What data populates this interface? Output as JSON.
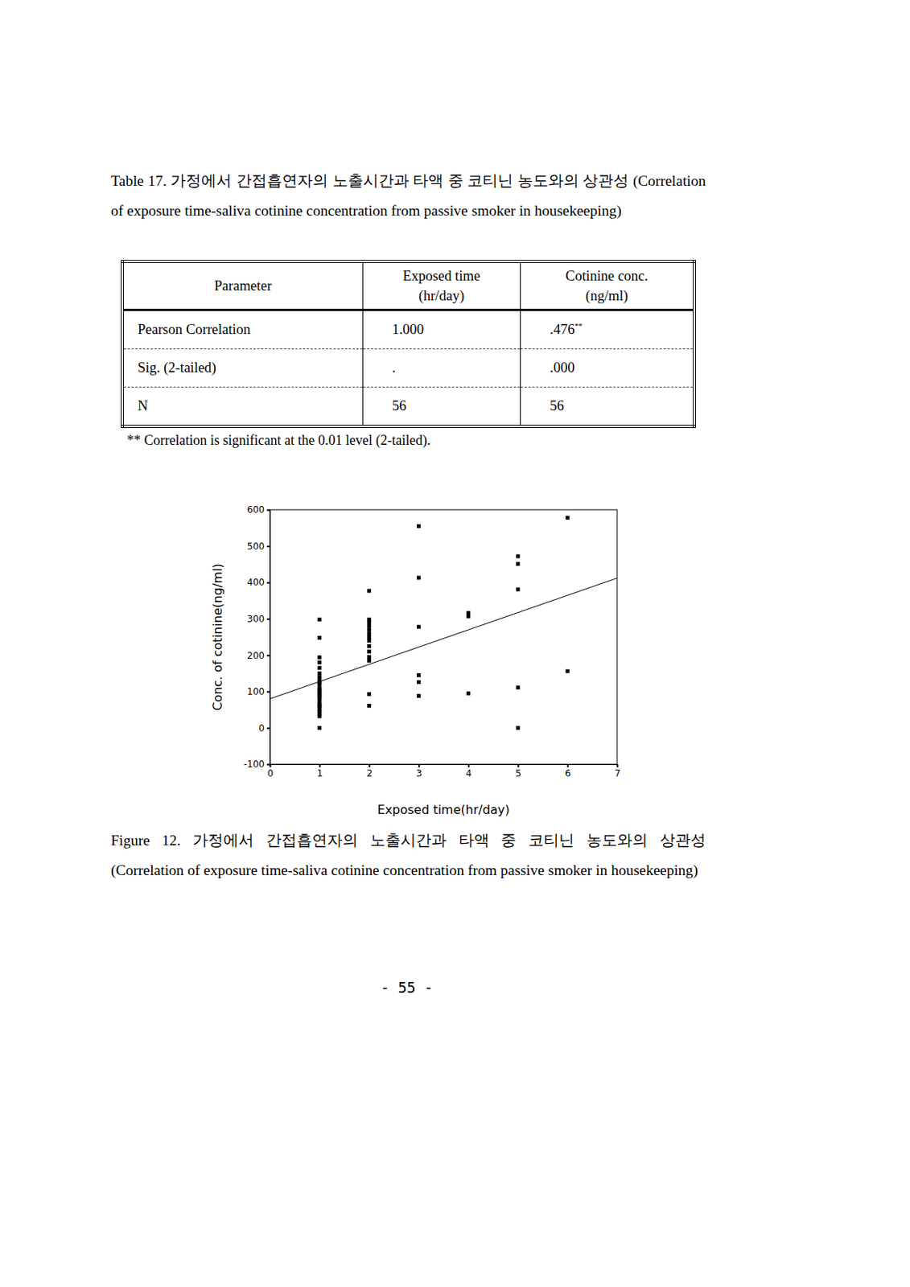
{
  "table_caption": "Table 17. 가정에서 간접흡연자의 노출시간과 타액 중 코티닌 농도와의 상관성 (Correlation of exposure time-saliva cotinine concentration from passive smoker in housekeeping)",
  "table": {
    "header": [
      [
        "Parameter"
      ],
      [
        "Exposed time",
        "(hr/day)"
      ],
      [
        "Cotinine conc.",
        "(ng/ml)"
      ]
    ],
    "rows": [
      [
        "Pearson Correlation",
        "1.000",
        {
          "text": ".476",
          "sup": "**"
        }
      ],
      [
        "Sig. (2-tailed)",
        ".",
        ".000"
      ],
      [
        "N",
        "56",
        "56"
      ]
    ]
  },
  "footnote": "** Correlation is significant at the 0.01 level (2-tailed).",
  "chart_data": {
    "type": "scatter",
    "x_label": "Exposed time(hr/day)",
    "y_label": "Conc. of cotinine(ng/ml)",
    "x": [
      1,
      1,
      1,
      1,
      1,
      1,
      1,
      1,
      1,
      1,
      1,
      1,
      1,
      1,
      1,
      1,
      1,
      1,
      1,
      1,
      1,
      1,
      1,
      1,
      1,
      1,
      2,
      2,
      2,
      2,
      2,
      2,
      2,
      2,
      2,
      2,
      2,
      2,
      2,
      2,
      3,
      3,
      3,
      3,
      3,
      3,
      4,
      4,
      4,
      5,
      5,
      5,
      5,
      5,
      6,
      6
    ],
    "y": [
      298,
      248,
      194,
      180,
      165,
      150,
      130,
      125,
      110,
      100,
      90,
      80,
      72,
      65,
      58,
      50,
      45,
      38,
      32,
      0,
      140,
      120,
      105,
      95,
      85,
      60,
      377,
      298,
      290,
      280,
      270,
      260,
      250,
      240,
      225,
      210,
      195,
      185,
      93,
      61,
      555,
      413,
      278,
      145,
      126,
      88,
      316,
      307,
      95,
      472,
      451,
      381,
      111,
      0,
      578,
      156
    ],
    "color": "#000000",
    "marker": "square",
    "trend_line": {
      "x": [
        0,
        7
      ],
      "y": [
        80,
        412
      ],
      "color": "#000000",
      "line_style": "solid"
    },
    "xlim": [
      0,
      7
    ],
    "xticks": [
      0,
      1,
      2,
      3,
      4,
      5,
      6,
      7
    ],
    "ylim": [
      -100,
      600
    ],
    "yticks": [
      -100,
      0,
      100,
      200,
      300,
      400,
      500,
      600
    ],
    "grid": false
  },
  "figure_caption": "Figure 12. 가정에서 간접흡연자의 노출시간과 타액 중 코티닌 농도와의 상관성 (Correlation of exposure time-saliva cotinine concentration from passive smoker in housekeeping)",
  "page_number": "- 55 -"
}
